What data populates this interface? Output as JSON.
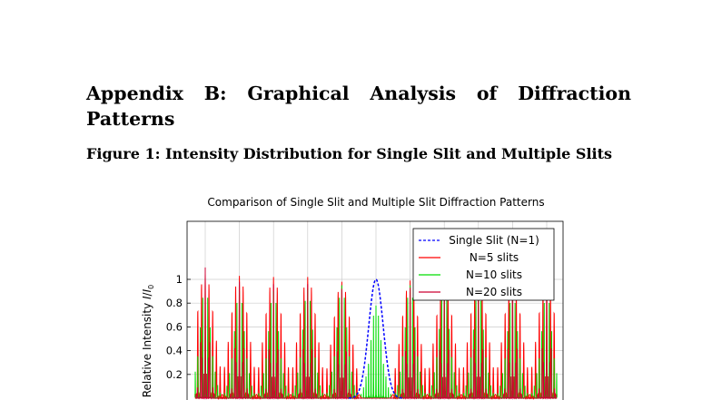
{
  "section": {
    "title": "Appendix B: Graphical Analysis of Diffraction Patterns"
  },
  "figure": {
    "caption": "Figure 1: Intensity Distribution for Single Slit and Multiple Slits"
  },
  "chart_data": {
    "type": "line",
    "title": "Comparison of Single Slit and Multiple Slit Diffraction Patterns",
    "xlabel": "",
    "ylabel": "Relative Intensity I/I0",
    "ylabel_parts": {
      "main": "Relative Intensity ",
      "symbol": "I",
      "slash": "/",
      "sub_base": "I",
      "sub": "0"
    },
    "ylim": [
      0,
      1.2
    ],
    "yticks": [
      "0.2",
      "0.4",
      "0.6",
      "0.8",
      "1"
    ],
    "ytick_values": [
      0.2,
      0.4,
      0.6,
      0.8,
      1.0
    ],
    "grid": true,
    "legend_position": "top-right",
    "series": [
      {
        "name": "Single Slit (N=1)",
        "color": "#0000ff",
        "style": "dashed",
        "peaks": [
          {
            "x": 0,
            "height": 1.0,
            "width": 0.5
          }
        ]
      },
      {
        "name": "N=5 slits",
        "color": "#ff0000",
        "style": "solid",
        "peaks": [
          {
            "x": -5,
            "height": 1.05,
            "width": 0.1
          },
          {
            "x": -4,
            "height": 1.03,
            "width": 0.1
          },
          {
            "x": -3,
            "height": 1.02,
            "width": 0.1
          },
          {
            "x": -2,
            "height": 1.02,
            "width": 0.1
          },
          {
            "x": -1,
            "height": 0.98,
            "width": 0.1
          },
          {
            "x": 1,
            "height": 0.99,
            "width": 0.1
          },
          {
            "x": 2,
            "height": 1.0,
            "width": 0.1
          },
          {
            "x": 3,
            "height": 1.02,
            "width": 0.1
          },
          {
            "x": 4,
            "height": 1.02,
            "width": 0.1
          },
          {
            "x": 5,
            "height": 1.03,
            "width": 0.1
          }
        ]
      },
      {
        "name": "N=10 slits",
        "color": "#00dd00",
        "style": "solid",
        "peaks": [
          {
            "x": -5,
            "height": 0.95,
            "width": 0.06
          },
          {
            "x": -4,
            "height": 0.9,
            "width": 0.06
          },
          {
            "x": -3,
            "height": 0.9,
            "width": 0.06
          },
          {
            "x": -2,
            "height": 0.92,
            "width": 0.06
          },
          {
            "x": -1,
            "height": 0.95,
            "width": 0.06
          },
          {
            "x": 0,
            "height": 0.78,
            "width": 0.06
          },
          {
            "x": 1,
            "height": 0.95,
            "width": 0.06
          },
          {
            "x": 2,
            "height": 0.93,
            "width": 0.06
          },
          {
            "x": 3,
            "height": 0.92,
            "width": 0.06
          },
          {
            "x": 4,
            "height": 0.9,
            "width": 0.06
          },
          {
            "x": 5,
            "height": 0.9,
            "width": 0.06
          }
        ]
      },
      {
        "name": "N=20 slits",
        "color": "#cc0033",
        "style": "solid",
        "peaks": [
          {
            "x": -5,
            "height": 1.1,
            "width": 0.03
          },
          {
            "x": -4,
            "height": 0.98,
            "width": 0.03
          },
          {
            "x": -3,
            "height": 0.96,
            "width": 0.03
          },
          {
            "x": -2,
            "height": 0.96,
            "width": 0.03
          },
          {
            "x": -1,
            "height": 0.92,
            "width": 0.03
          },
          {
            "x": 1,
            "height": 0.93,
            "width": 0.03
          },
          {
            "x": 2,
            "height": 0.95,
            "width": 0.03
          },
          {
            "x": 3,
            "height": 0.96,
            "width": 0.03
          },
          {
            "x": 4,
            "height": 0.97,
            "width": 0.03
          },
          {
            "x": 5,
            "height": 0.98,
            "width": 0.03
          }
        ]
      }
    ]
  }
}
